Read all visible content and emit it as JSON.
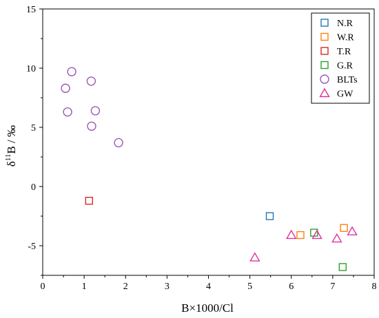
{
  "chart_data": {
    "type": "scatter",
    "title": "",
    "xlabel": "B×1000/Cl",
    "ylabel_parts": {
      "symbol": "δ",
      "sup": "11",
      "rest": "B / ‰"
    },
    "xlim": [
      0,
      8
    ],
    "ylim": [
      -7.5,
      15
    ],
    "xticks": [
      0,
      1,
      2,
      3,
      4,
      5,
      6,
      7,
      8
    ],
    "yticks": [
      -5,
      0,
      5,
      10,
      15
    ],
    "grid": false,
    "legend_position": "top-right",
    "series": [
      {
        "name": "N.R",
        "marker": "square",
        "color": "#1f77b4",
        "points": [
          [
            5.48,
            -2.5
          ]
        ]
      },
      {
        "name": "W.R",
        "marker": "square",
        "color": "#ff7f0e",
        "points": [
          [
            6.22,
            -4.1
          ],
          [
            7.27,
            -3.5
          ]
        ]
      },
      {
        "name": "T.R",
        "marker": "square",
        "color": "#d62728",
        "points": [
          [
            1.12,
            -1.2
          ]
        ]
      },
      {
        "name": "G.R",
        "marker": "square",
        "color": "#2ca02c",
        "points": [
          [
            6.55,
            -3.9
          ],
          [
            7.24,
            -6.8
          ]
        ]
      },
      {
        "name": "BLTs",
        "marker": "circle",
        "color": "#9b59b6",
        "points": [
          [
            0.55,
            8.3
          ],
          [
            0.7,
            9.7
          ],
          [
            1.17,
            8.9
          ],
          [
            0.6,
            6.3
          ],
          [
            1.27,
            6.4
          ],
          [
            1.18,
            5.1
          ],
          [
            1.83,
            3.7
          ]
        ]
      },
      {
        "name": "GW",
        "marker": "triangle",
        "color": "#e0309a",
        "points": [
          [
            5.12,
            -6.0
          ],
          [
            6.0,
            -4.1
          ],
          [
            6.62,
            -4.1
          ],
          [
            7.1,
            -4.4
          ],
          [
            7.47,
            -3.8
          ]
        ]
      }
    ]
  }
}
